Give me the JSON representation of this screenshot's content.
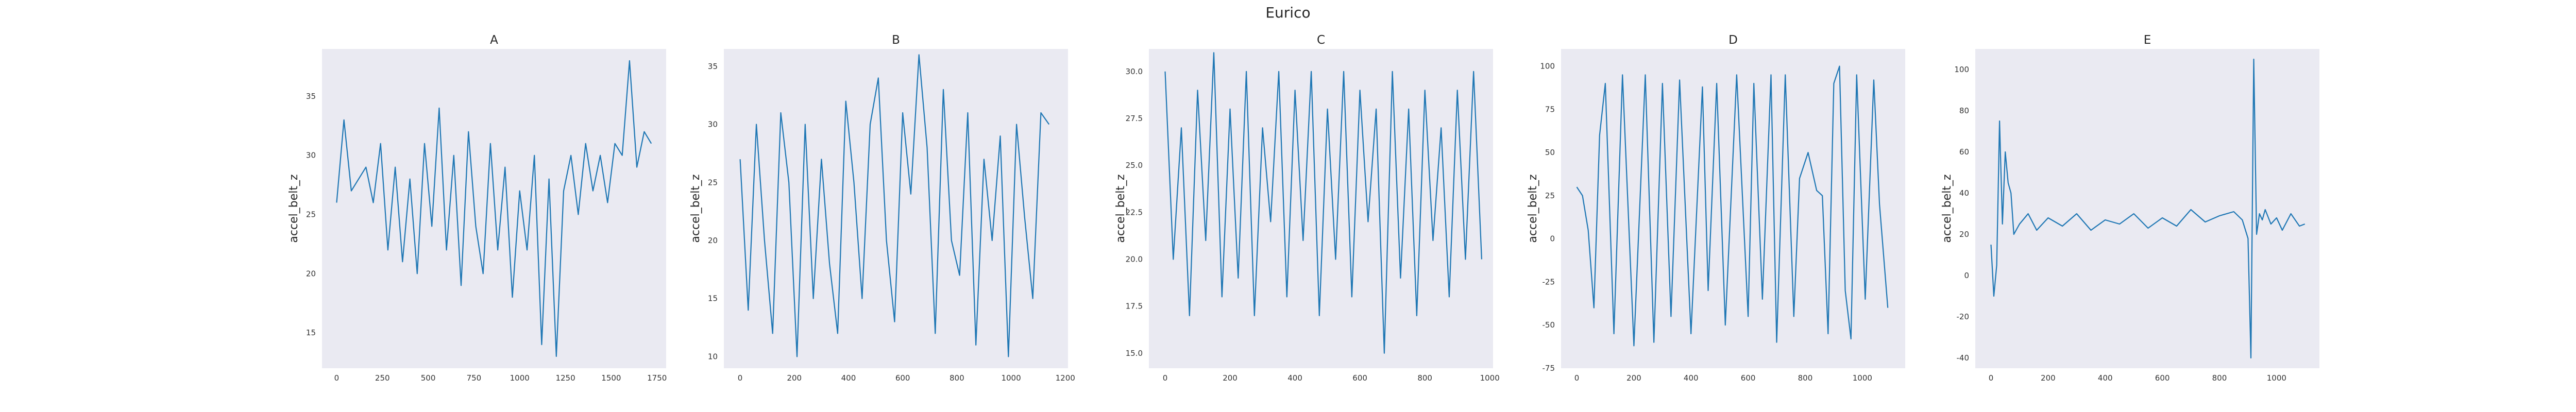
{
  "figure": {
    "suptitle": "Eurico"
  },
  "colors": {
    "plot_background": "#eaeaf2",
    "line": "#1f77b4",
    "text": "#262626"
  },
  "chart_data": [
    {
      "type": "line",
      "title": "A",
      "xlabel": "",
      "ylabel": "accel_belt_z",
      "grid": false,
      "xlim": [
        -80,
        1800
      ],
      "ylim": [
        12,
        39
      ],
      "xticks": [
        0,
        250,
        500,
        750,
        1000,
        1250,
        1500,
        1750
      ],
      "yticks": [
        15,
        20,
        25,
        30,
        35
      ],
      "n_points": 1720,
      "x": [
        0,
        40,
        80,
        120,
        160,
        200,
        240,
        280,
        320,
        360,
        400,
        440,
        480,
        520,
        560,
        600,
        640,
        680,
        720,
        760,
        800,
        840,
        880,
        920,
        960,
        1000,
        1040,
        1080,
        1120,
        1160,
        1200,
        1240,
        1280,
        1320,
        1360,
        1400,
        1440,
        1480,
        1520,
        1560,
        1600,
        1640,
        1680,
        1719
      ],
      "y": [
        26,
        33,
        27,
        28,
        29,
        26,
        31,
        22,
        29,
        21,
        28,
        20,
        31,
        24,
        34,
        22,
        30,
        19,
        32,
        24,
        20,
        31,
        22,
        29,
        18,
        27,
        22,
        30,
        14,
        28,
        13,
        27,
        30,
        25,
        31,
        27,
        30,
        26,
        31,
        30,
        38,
        29,
        32,
        31
      ]
    },
    {
      "type": "line",
      "title": "B",
      "xlabel": "",
      "ylabel": "accel_belt_z",
      "grid": false,
      "xlim": [
        -60,
        1210
      ],
      "ylim": [
        9,
        36.5
      ],
      "xticks": [
        0,
        200,
        400,
        600,
        800,
        1000,
        1200
      ],
      "yticks": [
        10,
        15,
        20,
        25,
        30,
        35
      ],
      "n_points": 1150,
      "x": [
        0,
        30,
        60,
        90,
        120,
        150,
        180,
        210,
        240,
        270,
        300,
        330,
        360,
        390,
        420,
        450,
        480,
        510,
        540,
        570,
        600,
        630,
        660,
        690,
        720,
        750,
        780,
        810,
        840,
        870,
        900,
        930,
        960,
        990,
        1020,
        1050,
        1080,
        1110,
        1140
      ],
      "y": [
        27,
        14,
        30,
        20,
        12,
        31,
        25,
        10,
        30,
        15,
        27,
        18,
        12,
        32,
        25,
        15,
        30,
        34,
        20,
        13,
        31,
        24,
        36,
        28,
        12,
        33,
        20,
        17,
        31,
        11,
        27,
        20,
        29,
        10,
        30,
        22,
        15,
        31,
        30
      ]
    },
    {
      "type": "line",
      "title": "C",
      "xlabel": "",
      "ylabel": "accel_belt_z",
      "grid": false,
      "xlim": [
        -50,
        1010
      ],
      "ylim": [
        14.2,
        31.2
      ],
      "xticks": [
        0,
        200,
        400,
        600,
        800,
        1000
      ],
      "yticks": [
        15.0,
        17.5,
        20.0,
        22.5,
        25.0,
        27.5,
        30.0
      ],
      "n_points": 980,
      "x": [
        0,
        25,
        50,
        75,
        100,
        125,
        150,
        175,
        200,
        225,
        250,
        275,
        300,
        325,
        350,
        375,
        400,
        425,
        450,
        475,
        500,
        525,
        550,
        575,
        600,
        625,
        650,
        675,
        700,
        725,
        750,
        775,
        800,
        825,
        850,
        875,
        900,
        925,
        950,
        975
      ],
      "y": [
        30,
        20,
        27,
        17,
        29,
        21,
        31,
        18,
        28,
        19,
        30,
        17,
        27,
        22,
        30,
        18,
        29,
        21,
        30,
        17,
        28,
        20,
        30,
        18,
        29,
        22,
        28,
        15,
        30,
        19,
        28,
        17,
        29,
        21,
        27,
        18,
        29,
        20,
        30,
        20
      ]
    },
    {
      "type": "line",
      "title": "D",
      "xlabel": "",
      "ylabel": "accel_belt_z",
      "grid": false,
      "xlim": [
        -55,
        1150
      ],
      "ylim": [
        -75,
        110
      ],
      "xticks": [
        0,
        200,
        400,
        600,
        800,
        1000
      ],
      "yticks": [
        -75,
        -50,
        -25,
        0,
        25,
        50,
        75,
        100
      ],
      "n_points": 1090,
      "x": [
        0,
        20,
        40,
        60,
        80,
        100,
        130,
        160,
        200,
        240,
        270,
        300,
        330,
        360,
        400,
        440,
        460,
        490,
        520,
        560,
        600,
        620,
        650,
        680,
        700,
        730,
        760,
        780,
        810,
        840,
        860,
        880,
        900,
        920,
        940,
        960,
        980,
        1010,
        1040,
        1060,
        1089
      ],
      "y": [
        30,
        25,
        5,
        -40,
        60,
        90,
        -55,
        95,
        -62,
        95,
        -60,
        90,
        -45,
        92,
        -55,
        88,
        -30,
        90,
        -50,
        95,
        -45,
        90,
        -35,
        95,
        -60,
        95,
        -45,
        35,
        50,
        28,
        25,
        -55,
        90,
        100,
        -30,
        -58,
        95,
        -35,
        92,
        20,
        -40
      ]
    },
    {
      "type": "line",
      "title": "E",
      "xlabel": "",
      "ylabel": "accel_belt_z",
      "grid": false,
      "xlim": [
        -55,
        1150
      ],
      "ylim": [
        -45,
        110
      ],
      "xticks": [
        0,
        200,
        400,
        600,
        800,
        1000
      ],
      "yticks": [
        -40,
        -20,
        0,
        20,
        40,
        60,
        80,
        100
      ],
      "n_points": 1100,
      "x": [
        0,
        10,
        20,
        30,
        40,
        50,
        60,
        70,
        80,
        100,
        130,
        160,
        200,
        250,
        300,
        350,
        400,
        450,
        500,
        550,
        600,
        650,
        700,
        750,
        800,
        850,
        880,
        900,
        910,
        920,
        930,
        940,
        950,
        960,
        980,
        1000,
        1020,
        1050,
        1080,
        1099
      ],
      "y": [
        15,
        -10,
        5,
        75,
        25,
        60,
        45,
        40,
        20,
        25,
        30,
        22,
        28,
        24,
        30,
        22,
        27,
        25,
        30,
        23,
        28,
        24,
        32,
        26,
        29,
        31,
        27,
        18,
        -40,
        105,
        20,
        30,
        27,
        32,
        25,
        28,
        22,
        30,
        24,
        25
      ]
    }
  ]
}
